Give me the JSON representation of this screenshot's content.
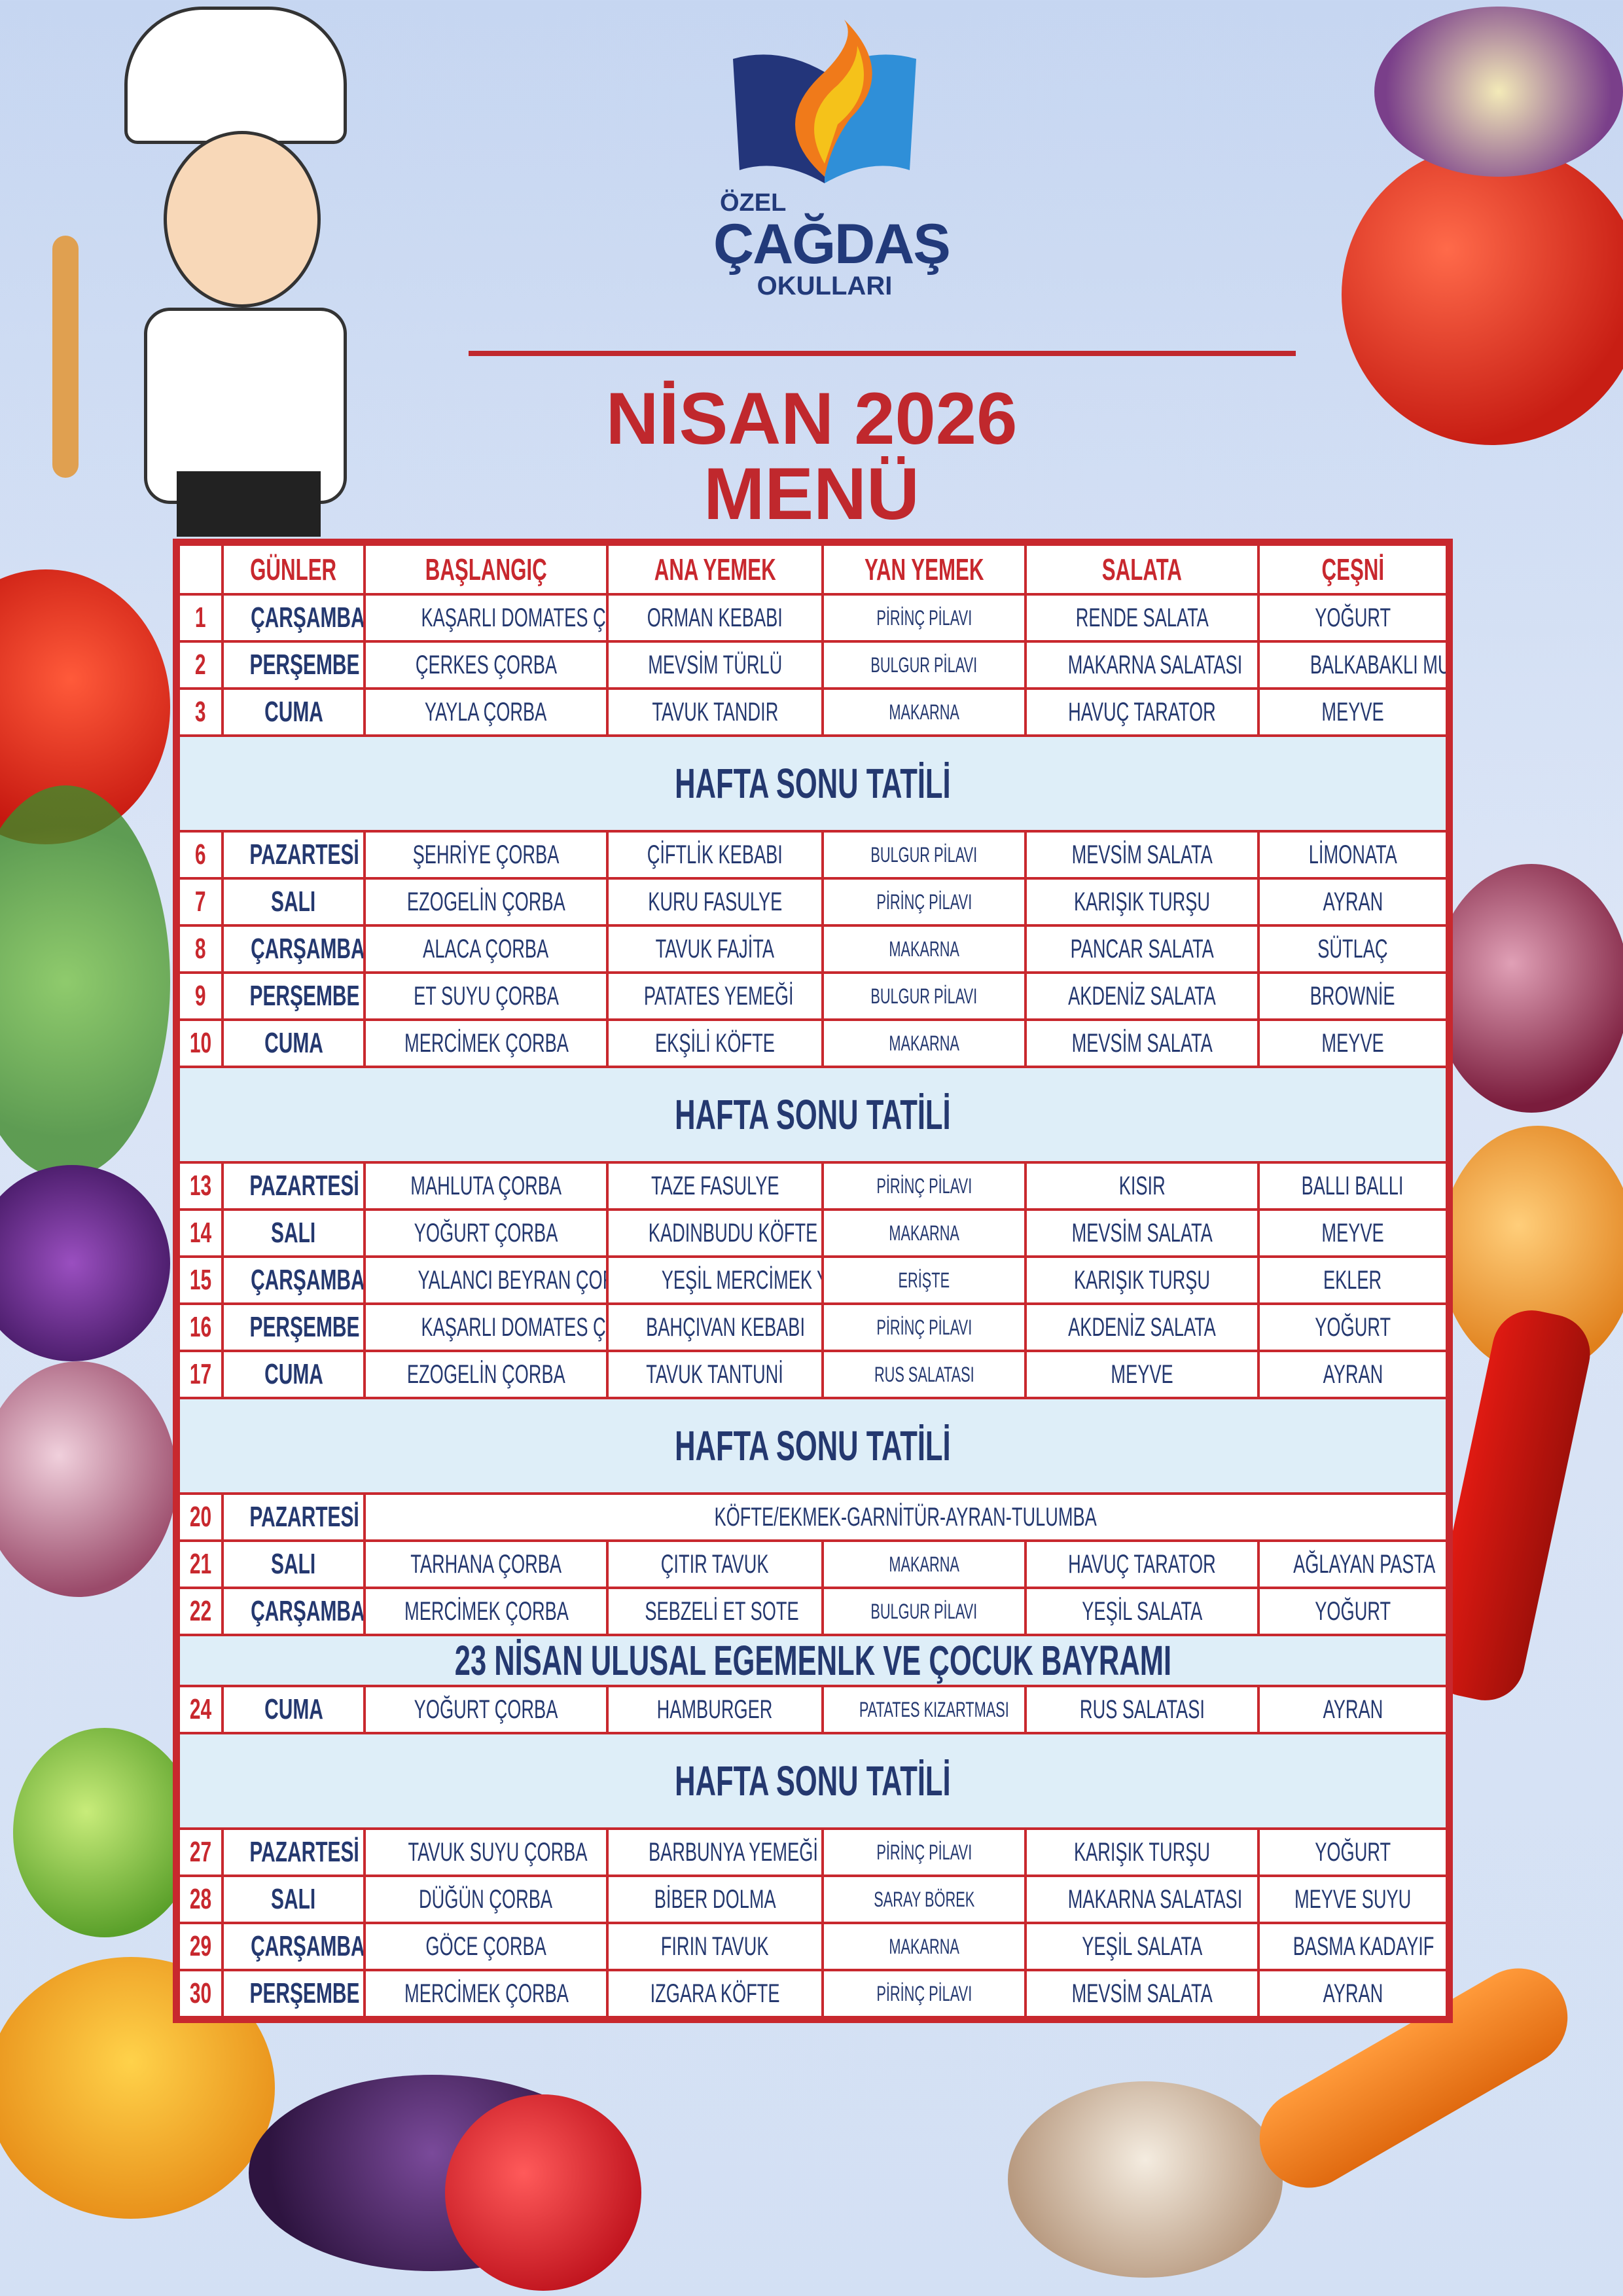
{
  "logo": {
    "line1": "ÖZEL",
    "line2": "ÇAĞDAŞ",
    "line3": "OKULLARI"
  },
  "title": {
    "line1": "NİSAN 2026",
    "line2": "MENÜ"
  },
  "colors": {
    "accent_red": "#c0282d",
    "navy": "#24386f",
    "banner_bg": "#deeef8"
  },
  "table": {
    "headers": [
      "",
      "GÜNLER",
      "BAŞLANGIÇ",
      "ANA YEMEK",
      "YAN YEMEK",
      "SALATA",
      "ÇEŞNİ"
    ],
    "rows": [
      {
        "type": "day",
        "day": "1",
        "name": "ÇARŞAMBA",
        "cells": [
          "KAŞARLI DOMATES ÇORBA",
          "ORMAN KEBABI",
          "PİRİNÇ PİLAVI",
          "RENDE SALATA",
          "YOĞURT"
        ]
      },
      {
        "type": "day",
        "day": "2",
        "name": "PERŞEMBE",
        "cells": [
          "ÇERKES ÇORBA",
          "MEVSİM TÜRLÜ",
          "BULGUR PİLAVI",
          "MAKARNA SALATASI",
          "BALKABAKLI MUHALLEBİ"
        ]
      },
      {
        "type": "day",
        "day": "3",
        "name": "CUMA",
        "cells": [
          "YAYLA ÇORBA",
          "TAVUK TANDIR",
          "MAKARNA",
          "HAVUÇ TARATOR",
          "MEYVE"
        ]
      },
      {
        "type": "banner",
        "text": "HAFTA  SONU TATİLİ"
      },
      {
        "type": "day",
        "day": "6",
        "name": "PAZARTESİ",
        "cells": [
          "ŞEHRİYE ÇORBA",
          "ÇİFTLİK KEBABI",
          "BULGUR PİLAVI",
          "MEVSİM SALATA",
          "LİMONATA"
        ]
      },
      {
        "type": "day",
        "day": "7",
        "name": "SALI",
        "cells": [
          "EZOGELİN ÇORBA",
          "KURU FASULYE",
          "PİRİNÇ PİLAVI",
          "KARIŞIK TURŞU",
          "AYRAN"
        ]
      },
      {
        "type": "day",
        "day": "8",
        "name": "ÇARŞAMBA",
        "cells": [
          "ALACA ÇORBA",
          "TAVUK FAJİTA",
          "MAKARNA",
          "PANCAR SALATA",
          "SÜTLAÇ"
        ]
      },
      {
        "type": "day",
        "day": "9",
        "name": "PERŞEMBE",
        "cells": [
          "ET SUYU ÇORBA",
          "PATATES YEMEĞİ",
          "BULGUR PİLAVI",
          "AKDENİZ SALATA",
          "BROWNİE"
        ]
      },
      {
        "type": "day",
        "day": "10",
        "name": "CUMA",
        "cells": [
          "MERCİMEK ÇORBA",
          "EKŞİLİ KÖFTE",
          "MAKARNA",
          "MEVSİM SALATA",
          "MEYVE"
        ]
      },
      {
        "type": "banner",
        "text": "HAFTA  SONU TATİLİ"
      },
      {
        "type": "day",
        "day": "13",
        "name": "PAZARTESİ",
        "cells": [
          "MAHLUTA ÇORBA",
          "TAZE FASULYE",
          "PİRİNÇ PİLAVI",
          "KISIR",
          "BALLI BALLI"
        ]
      },
      {
        "type": "day",
        "day": "14",
        "name": "SALI",
        "cells": [
          "YOĞURT ÇORBA",
          "KADINBUDU KÖFTE",
          "MAKARNA",
          "MEVSİM SALATA",
          "MEYVE"
        ]
      },
      {
        "type": "day",
        "day": "15",
        "name": "ÇARŞAMBA",
        "cells": [
          "YALANCI BEYRAN ÇORBA",
          "YEŞİL MERCİMEK YEMEĞİ",
          "ERİŞTE",
          "KARIŞIK TURŞU",
          "EKLER"
        ]
      },
      {
        "type": "day",
        "day": "16",
        "name": "PERŞEMBE",
        "cells": [
          "KAŞARLI DOMATES ÇORBA",
          "BAHÇIVAN KEBABI",
          "PİRİNÇ PİLAVI",
          "AKDENİZ SALATA",
          "YOĞURT"
        ]
      },
      {
        "type": "day",
        "day": "17",
        "name": "CUMA",
        "cells": [
          "EZOGELİN ÇORBA",
          "TAVUK TANTUNİ",
          "RUS SALATASI",
          "MEYVE",
          "AYRAN"
        ]
      },
      {
        "type": "banner",
        "text": "HAFTA  SONU TATİLİ"
      },
      {
        "type": "merged",
        "day": "20",
        "name": "PAZARTESİ",
        "text": "KÖFTE/EKMEK-GARNİTÜR-AYRAN-TULUMBA"
      },
      {
        "type": "day",
        "day": "21",
        "name": "SALI",
        "cells": [
          "TARHANA ÇORBA",
          "ÇITIR TAVUK",
          "MAKARNA",
          "HAVUÇ TARATOR",
          "AĞLAYAN PASTA"
        ]
      },
      {
        "type": "day",
        "day": "22",
        "name": "ÇARŞAMBA",
        "cells": [
          "MERCİMEK ÇORBA",
          "SEBZELİ ET SOTE",
          "BULGUR PİLAVI",
          "YEŞİL SALATA",
          "YOĞURT"
        ]
      },
      {
        "type": "holiday",
        "text": "23 NİSAN ULUSAL EGEMENLK VE ÇOCUK BAYRAMI"
      },
      {
        "type": "day",
        "day": "24",
        "name": "CUMA",
        "cells": [
          "YOĞURT ÇORBA",
          "HAMBURGER",
          "PATATES KIZARTMASI",
          "RUS SALATASI",
          "AYRAN"
        ]
      },
      {
        "type": "banner",
        "text": "HAFTA  SONU TATİLİ"
      },
      {
        "type": "day",
        "day": "27",
        "name": "PAZARTESİ",
        "cells": [
          "TAVUK SUYU ÇORBA",
          "BARBUNYA YEMEĞİ",
          "PİRİNÇ PİLAVI",
          "KARIŞIK TURŞU",
          "YOĞURT"
        ]
      },
      {
        "type": "day",
        "day": "28",
        "name": "SALI",
        "cells": [
          "DÜĞÜN ÇORBA",
          "BİBER DOLMA",
          "SARAY BÖREK",
          "MAKARNA SALATASI",
          "MEYVE SUYU"
        ]
      },
      {
        "type": "day",
        "day": "29",
        "name": "ÇARŞAMBA",
        "cells": [
          "GÖCE ÇORBA",
          "FIRIN TAVUK",
          "MAKARNA",
          "YEŞİL SALATA",
          "BASMA KADAYIF"
        ]
      },
      {
        "type": "day",
        "day": "30",
        "name": "PERŞEMBE",
        "cells": [
          "MERCİMEK ÇORBA",
          "IZGARA KÖFTE",
          "PİRİNÇ PİLAVI",
          "MEVSİM SALATA",
          "AYRAN"
        ]
      }
    ]
  }
}
